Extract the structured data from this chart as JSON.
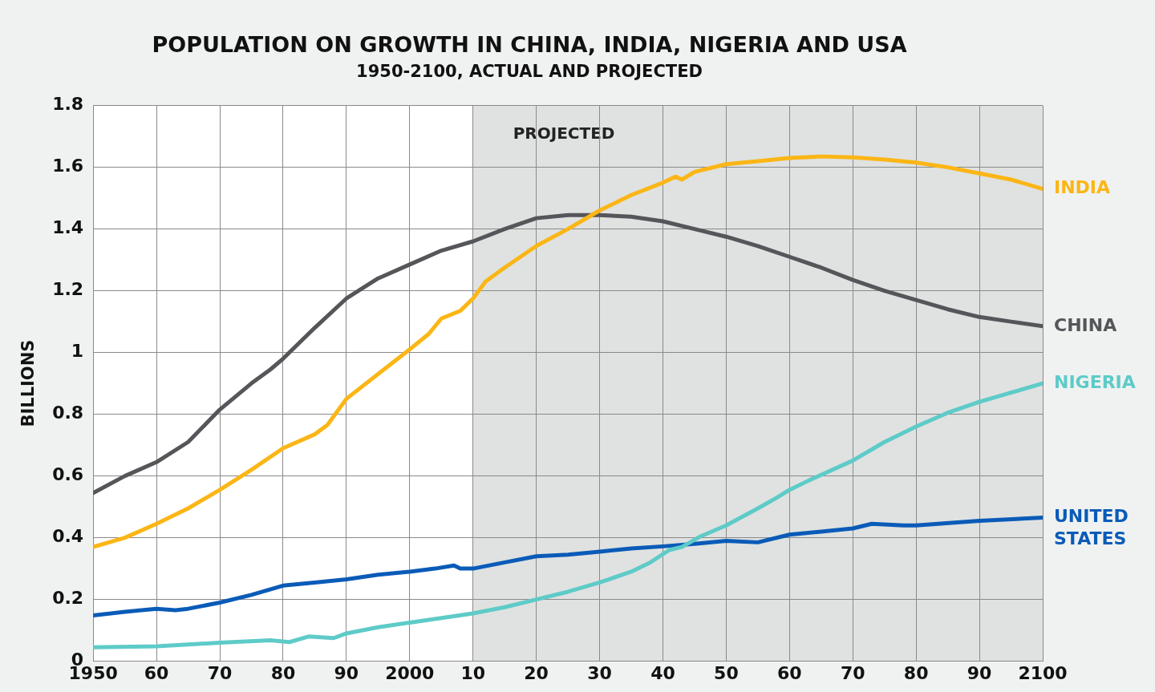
{
  "chart_data": {
    "type": "line",
    "title": "POPULATION ON GROWTH IN CHINA, INDIA, NIGERIA AND USA",
    "subtitle": "1950-2100, ACTUAL AND PROJECTED",
    "ylabel": "BILLIONS",
    "xlim": [
      1950,
      2100
    ],
    "xticks": [
      1950,
      {
        "value": 1960,
        "label": "60"
      },
      {
        "value": 1970,
        "label": "70"
      },
      {
        "value": 1980,
        "label": "80"
      },
      {
        "value": 1990,
        "label": "90"
      },
      2000,
      {
        "value": 2010,
        "label": "10"
      },
      {
        "value": 2020,
        "label": "20"
      },
      {
        "value": 2030,
        "label": "30"
      },
      {
        "value": 2040,
        "label": "40"
      },
      {
        "value": 2050,
        "label": "50"
      },
      {
        "value": 2060,
        "label": "60"
      },
      {
        "value": 2070,
        "label": "70"
      },
      {
        "value": 2080,
        "label": "80"
      },
      {
        "value": 2090,
        "label": "90"
      },
      2100
    ],
    "ylim": [
      0,
      1.8
    ],
    "yticks": [
      0,
      0.2,
      0.4,
      0.6,
      0.8,
      1,
      1.2,
      1.4,
      1.6,
      1.8
    ],
    "grid": true,
    "legend": false,
    "marker": "none",
    "line_style": "solid",
    "bands": [
      {
        "axis": "x",
        "from": 2010,
        "to": 2100,
        "label": "PROJECTED",
        "color": "#dfe2e1"
      }
    ],
    "series": [
      {
        "name": "INDIA",
        "color": "#fbb616",
        "x": [
          1950,
          1955,
          1960,
          1965,
          1970,
          1975,
          1980,
          1985,
          1987,
          1990,
          1995,
          2000,
          2003,
          2005,
          2008,
          2010,
          2012,
          2015,
          2020,
          2025,
          2030,
          2035,
          2040,
          2042,
          2043,
          2045,
          2050,
          2055,
          2060,
          2065,
          2070,
          2075,
          2080,
          2085,
          2090,
          2095,
          2100
        ],
        "values": [
          0.37,
          0.4,
          0.445,
          0.495,
          0.555,
          0.62,
          0.69,
          0.735,
          0.765,
          0.85,
          0.93,
          1.01,
          1.06,
          1.11,
          1.135,
          1.175,
          1.23,
          1.275,
          1.345,
          1.4,
          1.46,
          1.51,
          1.55,
          1.57,
          1.56,
          1.585,
          1.61,
          1.62,
          1.63,
          1.635,
          1.632,
          1.625,
          1.615,
          1.6,
          1.58,
          1.56,
          1.53
        ]
      },
      {
        "name": "CHINA",
        "color": "#55565a",
        "x": [
          1950,
          1955,
          1960,
          1965,
          1970,
          1975,
          1978,
          1980,
          1985,
          1990,
          1995,
          2000,
          2005,
          2010,
          2015,
          2020,
          2025,
          2030,
          2035,
          2040,
          2045,
          2050,
          2055,
          2060,
          2065,
          2070,
          2075,
          2080,
          2085,
          2090,
          2095,
          2100
        ],
        "values": [
          0.545,
          0.6,
          0.645,
          0.71,
          0.815,
          0.9,
          0.945,
          0.98,
          1.08,
          1.175,
          1.24,
          1.285,
          1.33,
          1.36,
          1.4,
          1.435,
          1.445,
          1.445,
          1.44,
          1.425,
          1.4,
          1.375,
          1.345,
          1.31,
          1.275,
          1.235,
          1.2,
          1.17,
          1.14,
          1.115,
          1.1,
          1.085
        ]
      },
      {
        "name": "NIGERIA",
        "color": "#5ecbc8",
        "x": [
          1950,
          1960,
          1970,
          1978,
          1981,
          1984,
          1988,
          1990,
          1995,
          2000,
          2005,
          2010,
          2015,
          2020,
          2025,
          2030,
          2035,
          2038,
          2041,
          2043,
          2046,
          2050,
          2055,
          2058,
          2060,
          2063,
          2070,
          2075,
          2080,
          2085,
          2090,
          2095,
          2100
        ],
        "values": [
          0.045,
          0.048,
          0.06,
          0.068,
          0.062,
          0.08,
          0.075,
          0.09,
          0.11,
          0.125,
          0.14,
          0.155,
          0.175,
          0.2,
          0.225,
          0.255,
          0.29,
          0.32,
          0.36,
          0.37,
          0.405,
          0.44,
          0.495,
          0.53,
          0.555,
          0.585,
          0.65,
          0.71,
          0.76,
          0.805,
          0.84,
          0.87,
          0.9
        ]
      },
      {
        "name": "UNITED STATES",
        "color": "#0a5bb8",
        "x": [
          1950,
          1955,
          1960,
          1963,
          1965,
          1970,
          1975,
          1980,
          1985,
          1990,
          1995,
          2000,
          2004,
          2007,
          2008,
          2010,
          2015,
          2020,
          2025,
          2030,
          2035,
          2040,
          2045,
          2050,
          2055,
          2060,
          2065,
          2070,
          2073,
          2078,
          2080,
          2090,
          2100
        ],
        "values": [
          0.148,
          0.16,
          0.17,
          0.165,
          0.17,
          0.19,
          0.215,
          0.245,
          0.255,
          0.265,
          0.28,
          0.29,
          0.3,
          0.31,
          0.3,
          0.3,
          0.32,
          0.34,
          0.345,
          0.355,
          0.365,
          0.372,
          0.38,
          0.39,
          0.385,
          0.41,
          0.42,
          0.43,
          0.445,
          0.44,
          0.44,
          0.455,
          0.465
        ]
      }
    ]
  }
}
